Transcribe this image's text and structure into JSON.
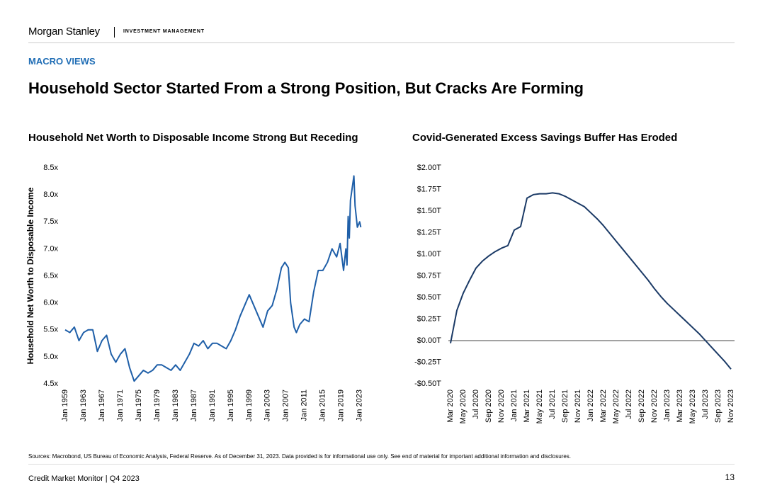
{
  "header": {
    "brand": "Morgan Stanley",
    "division": "INVESTMENT MANAGEMENT"
  },
  "section": "MACRO VIEWS",
  "title": "Household Sector Started From a Strong Position, But Cracks Are Forming",
  "chart_data": [
    {
      "type": "line",
      "title": "Household Net Worth to Disposable Income Strong But Receding",
      "ylabel": "Household Net Worth to Disposable Income",
      "color": "#1f5fa8",
      "x": [
        1959,
        1960,
        1961,
        1962,
        1963,
        1964,
        1965,
        1966,
        1967,
        1968,
        1969,
        1970,
        1971,
        1972,
        1973,
        1974,
        1975,
        1976,
        1977,
        1978,
        1979,
        1980,
        1981,
        1982,
        1983,
        1984,
        1985,
        1986,
        1987,
        1988,
        1989,
        1990,
        1991,
        1992,
        1993,
        1994,
        1995,
        1996,
        1997,
        1998,
        1999,
        2000,
        2001,
        2002,
        2003,
        2004,
        2005,
        2006,
        2006.75,
        2007.5,
        2008,
        2008.75,
        2009.25,
        2010,
        2011,
        2012,
        2013,
        2014,
        2015,
        2016,
        2017,
        2018,
        2018.75,
        2019.5,
        2020,
        2020.25,
        2020.5,
        2020.75,
        2021,
        2021.5,
        2021.75,
        2022,
        2022.5,
        2023,
        2023.25
      ],
      "values": [
        5.5,
        5.45,
        5.55,
        5.3,
        5.45,
        5.5,
        5.5,
        5.1,
        5.3,
        5.4,
        5.05,
        4.9,
        5.05,
        5.15,
        4.8,
        4.55,
        4.65,
        4.75,
        4.7,
        4.75,
        4.85,
        4.85,
        4.8,
        4.75,
        4.85,
        4.75,
        4.9,
        5.05,
        5.25,
        5.2,
        5.3,
        5.15,
        5.25,
        5.25,
        5.2,
        5.15,
        5.3,
        5.5,
        5.75,
        5.95,
        6.15,
        5.95,
        5.75,
        5.55,
        5.85,
        5.95,
        6.25,
        6.65,
        6.75,
        6.65,
        6.0,
        5.55,
        5.45,
        5.6,
        5.7,
        5.65,
        6.2,
        6.6,
        6.6,
        6.75,
        7.0,
        6.85,
        7.1,
        6.6,
        7.0,
        6.7,
        7.6,
        7.2,
        7.9,
        8.2,
        8.35,
        7.8,
        7.4,
        7.5,
        7.4
      ],
      "xlim": [
        1959,
        2023.5
      ],
      "xticks": [
        {
          "value": 1959,
          "label": "Jan 1959"
        },
        {
          "value": 1963,
          "label": "Jan 1963"
        },
        {
          "value": 1967,
          "label": "Jan 1967"
        },
        {
          "value": 1971,
          "label": "Jan 1971"
        },
        {
          "value": 1975,
          "label": "Jan 1975"
        },
        {
          "value": 1979,
          "label": "Jan 1979"
        },
        {
          "value": 1983,
          "label": "Jan 1983"
        },
        {
          "value": 1987,
          "label": "Jan 1987"
        },
        {
          "value": 1991,
          "label": "Jan 1991"
        },
        {
          "value": 1995,
          "label": "Jan 1995"
        },
        {
          "value": 1999,
          "label": "Jan 1999"
        },
        {
          "value": 2003,
          "label": "Jan 2003"
        },
        {
          "value": 2007,
          "label": "Jan 2007"
        },
        {
          "value": 2011,
          "label": "Jan 2011"
        },
        {
          "value": 2015,
          "label": "Jan 2015"
        },
        {
          "value": 2019,
          "label": "Jan 2019"
        },
        {
          "value": 2023,
          "label": "Jan 2023"
        }
      ],
      "ylim": [
        4.5,
        8.5
      ],
      "yticks": [
        {
          "value": 4.5,
          "label": "4.5x"
        },
        {
          "value": 5.0,
          "label": "5.0x"
        },
        {
          "value": 5.5,
          "label": "5.5x"
        },
        {
          "value": 6.0,
          "label": "6.0x"
        },
        {
          "value": 6.5,
          "label": "6.5x"
        },
        {
          "value": 7.0,
          "label": "7.0x"
        },
        {
          "value": 7.5,
          "label": "7.5x"
        },
        {
          "value": 8.0,
          "label": "8.0x"
        },
        {
          "value": 8.5,
          "label": "8.5x"
        }
      ]
    },
    {
      "type": "line",
      "title": "Covid-Generated Excess Savings Buffer Has Eroded",
      "color": "#1b3a66",
      "zero_line": true,
      "categories": [
        "Mar 2020",
        null,
        "May 2020",
        null,
        "Jul 2020",
        null,
        "Sep 2020",
        null,
        "Nov 2020",
        null,
        "Jan 2021",
        null,
        "Mar 2021",
        null,
        "May 2021",
        null,
        "Jul 2021",
        null,
        "Sep 2021",
        null,
        "Nov 2021",
        null,
        "Jan 2022",
        null,
        "Mar 2022",
        null,
        "May 2022",
        null,
        "Jul 2022",
        null,
        "Sep 2022",
        null,
        "Nov 2022",
        null,
        "Jan 2023",
        null,
        "Mar 2023",
        null,
        "May 2023",
        null,
        "Jul 2023",
        null,
        "Sep 2023",
        null,
        "Nov 2023"
      ],
      "values": [
        -0.03,
        0.35,
        0.55,
        0.7,
        0.84,
        0.92,
        0.98,
        1.03,
        1.07,
        1.1,
        1.28,
        1.32,
        1.65,
        1.69,
        1.7,
        1.7,
        1.71,
        1.7,
        1.67,
        1.63,
        1.59,
        1.55,
        1.48,
        1.41,
        1.33,
        1.24,
        1.15,
        1.06,
        0.97,
        0.88,
        0.79,
        0.7,
        0.6,
        0.51,
        0.43,
        0.36,
        0.29,
        0.22,
        0.15,
        0.08,
        0.0,
        -0.08,
        -0.16,
        -0.24,
        -0.33
      ],
      "ylim": [
        -0.5,
        2.0
      ],
      "yticks": [
        {
          "value": -0.5,
          "label": "-$0.50T"
        },
        {
          "value": -0.25,
          "label": "-$0.25T"
        },
        {
          "value": 0,
          "label": "$0.00T"
        },
        {
          "value": 0.25,
          "label": "$0.25T"
        },
        {
          "value": 0.5,
          "label": "$0.50T"
        },
        {
          "value": 0.75,
          "label": "$0.75T"
        },
        {
          "value": 1.0,
          "label": "$1.00T"
        },
        {
          "value": 1.25,
          "label": "$1.25T"
        },
        {
          "value": 1.5,
          "label": "$1.50T"
        },
        {
          "value": 1.75,
          "label": "$1.75T"
        },
        {
          "value": 2.0,
          "label": "$2.00T"
        }
      ]
    }
  ],
  "sources": "Sources: Macrobond, US Bureau of Economic Analysis, Federal Reserve. As of December 31, 2023. Data provided is for informational use only. See end of material for important additional information and disclosures.",
  "footer": {
    "left": "Credit Market Monitor | Q4 2023",
    "page": "13"
  }
}
